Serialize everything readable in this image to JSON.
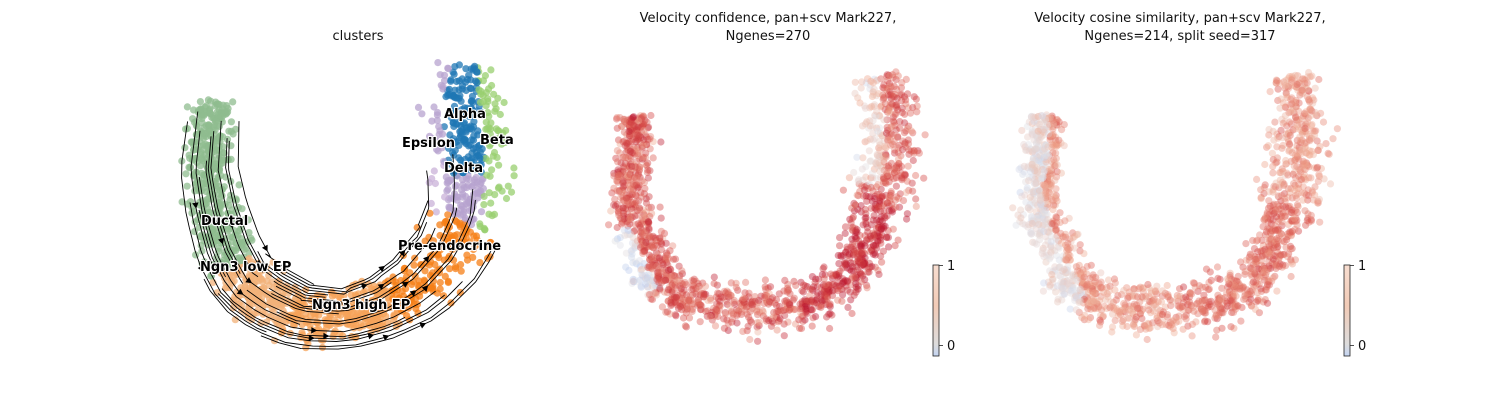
{
  "chart_data": [
    {
      "type": "scatter",
      "title": "clusters",
      "variant": "embedding with velocity streamlines",
      "categories": [
        {
          "name": "Ductal",
          "color": "#8fbc8f"
        },
        {
          "name": "Ngn3 low EP",
          "color": "#f2b27a"
        },
        {
          "name": "Ngn3 high EP",
          "color": "#f5a35a"
        },
        {
          "name": "Pre-endocrine",
          "color": "#f57f17"
        },
        {
          "name": "Beta",
          "color": "#98cf6f"
        },
        {
          "name": "Alpha",
          "color": "#1f77b4"
        },
        {
          "name": "Delta",
          "color": "#b7a3cf"
        },
        {
          "name": "Epsilon",
          "color": "#c9b1d8"
        }
      ],
      "grid": false,
      "axes_visible": false
    },
    {
      "type": "scatter",
      "title": "Velocity confidence, pan+scv Mark227,",
      "subtitle": "Ngenes=270",
      "colormap": "coolwarm",
      "colorbar_ticks": [
        "1",
        "0"
      ],
      "colorbar_range": [
        -0.15,
        1
      ],
      "grid": false
    },
    {
      "type": "scatter",
      "title": "Velocity cosine similarity, pan+scv Mark227,",
      "subtitle": "Ngenes=214, split seed=317",
      "colormap": "coolwarm",
      "colorbar_ticks": [
        "1",
        "0"
      ],
      "colorbar_range": [
        -0.15,
        1
      ],
      "grid": false
    }
  ]
}
